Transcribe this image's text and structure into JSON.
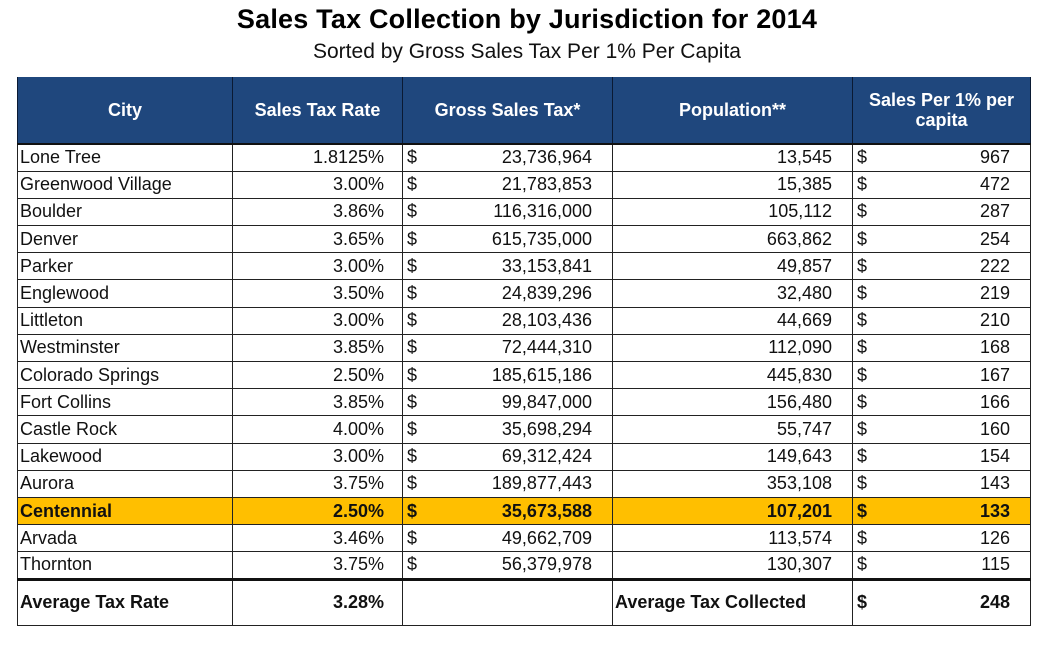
{
  "title": "Sales Tax Collection by Jurisdiction for 2014",
  "subtitle": "Sorted by Gross Sales Tax Per 1% Per Capita",
  "highlight_color": "#ffbf00",
  "header_color": "#1f477d",
  "columns": {
    "city": "City",
    "rate": "Sales Tax Rate",
    "gross": "Gross Sales Tax*",
    "population": "Population**",
    "per_capita": "Sales Per 1% per capita"
  },
  "currency_symbol": "$",
  "rows": [
    {
      "city": "Lone Tree",
      "rate": "1.8125%",
      "gross": "23,736,964",
      "population": "13,545",
      "per_capita": "967"
    },
    {
      "city": "Greenwood Village",
      "rate": "3.00%",
      "gross": "21,783,853",
      "population": "15,385",
      "per_capita": "472"
    },
    {
      "city": "Boulder",
      "rate": "3.86%",
      "gross": "116,316,000",
      "population": "105,112",
      "per_capita": "287"
    },
    {
      "city": "Denver",
      "rate": "3.65%",
      "gross": "615,735,000",
      "population": "663,862",
      "per_capita": "254"
    },
    {
      "city": "Parker",
      "rate": "3.00%",
      "gross": "33,153,841",
      "population": "49,857",
      "per_capita": "222"
    },
    {
      "city": "Englewood",
      "rate": "3.50%",
      "gross": "24,839,296",
      "population": "32,480",
      "per_capita": "219"
    },
    {
      "city": "Littleton",
      "rate": "3.00%",
      "gross": "28,103,436",
      "population": "44,669",
      "per_capita": "210"
    },
    {
      "city": "Westminster",
      "rate": "3.85%",
      "gross": "72,444,310",
      "population": "112,090",
      "per_capita": "168"
    },
    {
      "city": "Colorado Springs",
      "rate": "2.50%",
      "gross": "185,615,186",
      "population": "445,830",
      "per_capita": "167"
    },
    {
      "city": "Fort Collins",
      "rate": "3.85%",
      "gross": "99,847,000",
      "population": "156,480",
      "per_capita": "166"
    },
    {
      "city": "Castle Rock",
      "rate": "4.00%",
      "gross": "35,698,294",
      "population": "55,747",
      "per_capita": "160"
    },
    {
      "city": "Lakewood",
      "rate": "3.00%",
      "gross": "69,312,424",
      "population": "149,643",
      "per_capita": "154"
    },
    {
      "city": "Aurora",
      "rate": "3.75%",
      "gross": "189,877,443",
      "population": "353,108",
      "per_capita": "143"
    },
    {
      "city": "Centennial",
      "rate": "2.50%",
      "gross": "35,673,588",
      "population": "107,201",
      "per_capita": "133",
      "highlighted": true
    },
    {
      "city": "Arvada",
      "rate": "3.46%",
      "gross": "49,662,709",
      "population": "113,574",
      "per_capita": "126"
    },
    {
      "city": "Thornton",
      "rate": "3.75%",
      "gross": "56,379,978",
      "population": "130,307",
      "per_capita": "115"
    }
  ],
  "footer": {
    "avg_rate_label": "Average Tax Rate",
    "avg_rate_value": "3.28%",
    "avg_collected_label": "Average Tax Collected",
    "avg_collected_value": "248"
  }
}
